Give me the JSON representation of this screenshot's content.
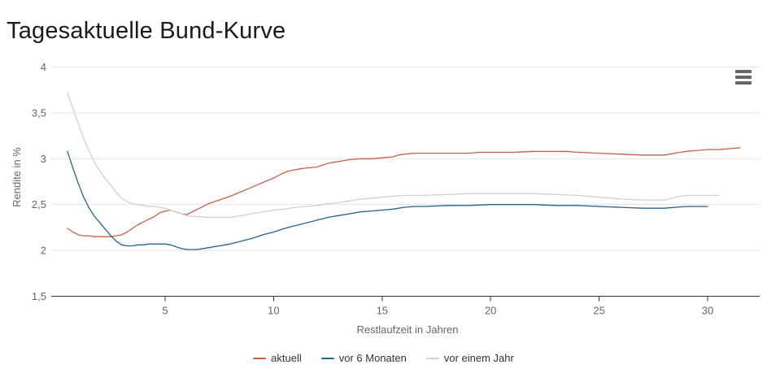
{
  "page": {
    "title": "Tagesaktuelle Bund-Kurve"
  },
  "controls": {
    "context_menu_icon": "hamburger-icon"
  },
  "colors": {
    "background": "#ffffff",
    "gridline": "#e6e6e6",
    "axis_line": "#333333",
    "tick_text": "#666666",
    "legend_text": "#333333",
    "title_text": "#1a1a1a",
    "series_aktuell": "#c9604c",
    "series_vor6": "#23658a",
    "series_vorjahr": "#d0d0d0"
  },
  "chart_data": {
    "type": "line",
    "title": "Tagesaktuelle Bund-Kurve",
    "xlabel": "Restlaufzeit in Jahren",
    "ylabel": "Rendite in %",
    "xlim": [
      0,
      32.4
    ],
    "ylim": [
      1.5,
      4
    ],
    "xticks": [
      5,
      10,
      15,
      20,
      25,
      30
    ],
    "yticks": [
      1.5,
      2,
      2.5,
      3,
      3.5,
      4
    ],
    "ytick_labels": [
      "1,5",
      "2",
      "2,5",
      "3",
      "3,5",
      "4"
    ],
    "grid": "horizontal-only",
    "legend_position": "bottom-center",
    "series": [
      {
        "name": "aktuell",
        "color": "#c9604c",
        "points": [
          [
            0.5,
            2.24
          ],
          [
            0.75,
            2.2
          ],
          [
            1,
            2.17
          ],
          [
            1.25,
            2.16
          ],
          [
            1.5,
            2.16
          ],
          [
            1.75,
            2.15
          ],
          [
            2,
            2.15
          ],
          [
            2.25,
            2.15
          ],
          [
            2.5,
            2.15
          ],
          [
            2.75,
            2.16
          ],
          [
            3,
            2.17
          ],
          [
            3.25,
            2.2
          ],
          [
            3.5,
            2.24
          ],
          [
            3.75,
            2.28
          ],
          [
            4,
            2.31
          ],
          [
            4.25,
            2.34
          ],
          [
            4.5,
            2.37
          ],
          [
            4.75,
            2.41
          ],
          [
            5,
            2.43
          ],
          [
            5.25,
            2.44
          ],
          [
            5.5,
            2.42
          ],
          [
            5.75,
            2.4
          ],
          [
            6,
            2.39
          ],
          [
            6.25,
            2.42
          ],
          [
            6.5,
            2.45
          ],
          [
            6.75,
            2.48
          ],
          [
            7,
            2.51
          ],
          [
            7.25,
            2.53
          ],
          [
            7.5,
            2.55
          ],
          [
            7.75,
            2.57
          ],
          [
            8,
            2.59
          ],
          [
            8.5,
            2.64
          ],
          [
            9,
            2.69
          ],
          [
            9.5,
            2.74
          ],
          [
            10,
            2.79
          ],
          [
            10.25,
            2.82
          ],
          [
            10.5,
            2.85
          ],
          [
            10.75,
            2.87
          ],
          [
            11,
            2.88
          ],
          [
            11.25,
            2.89
          ],
          [
            11.5,
            2.9
          ],
          [
            12,
            2.91
          ],
          [
            12.25,
            2.93
          ],
          [
            12.5,
            2.95
          ],
          [
            12.75,
            2.96
          ],
          [
            13,
            2.97
          ],
          [
            13.25,
            2.98
          ],
          [
            13.5,
            2.99
          ],
          [
            14,
            3.0
          ],
          [
            14.5,
            3.0
          ],
          [
            15,
            3.01
          ],
          [
            15.5,
            3.02
          ],
          [
            15.75,
            3.04
          ],
          [
            16,
            3.05
          ],
          [
            16.5,
            3.06
          ],
          [
            17,
            3.06
          ],
          [
            18,
            3.06
          ],
          [
            19,
            3.06
          ],
          [
            19.5,
            3.07
          ],
          [
            20,
            3.07
          ],
          [
            21,
            3.07
          ],
          [
            22,
            3.08
          ],
          [
            23,
            3.08
          ],
          [
            23.5,
            3.08
          ],
          [
            24,
            3.07
          ],
          [
            25,
            3.06
          ],
          [
            26,
            3.05
          ],
          [
            27,
            3.04
          ],
          [
            27.5,
            3.04
          ],
          [
            28,
            3.04
          ],
          [
            28.25,
            3.05
          ],
          [
            28.5,
            3.06
          ],
          [
            28.75,
            3.07
          ],
          [
            29,
            3.08
          ],
          [
            29.5,
            3.09
          ],
          [
            30,
            3.1
          ],
          [
            30.5,
            3.1
          ],
          [
            31,
            3.11
          ],
          [
            31.5,
            3.12
          ]
        ]
      },
      {
        "name": "vor 6 Monaten",
        "color": "#23658a",
        "points": [
          [
            0.5,
            3.08
          ],
          [
            0.75,
            2.9
          ],
          [
            1,
            2.73
          ],
          [
            1.25,
            2.58
          ],
          [
            1.5,
            2.46
          ],
          [
            1.75,
            2.37
          ],
          [
            2,
            2.3
          ],
          [
            2.25,
            2.23
          ],
          [
            2.5,
            2.16
          ],
          [
            2.75,
            2.1
          ],
          [
            3,
            2.06
          ],
          [
            3.25,
            2.05
          ],
          [
            3.5,
            2.05
          ],
          [
            3.75,
            2.06
          ],
          [
            4,
            2.06
          ],
          [
            4.25,
            2.07
          ],
          [
            4.5,
            2.07
          ],
          [
            4.75,
            2.07
          ],
          [
            5,
            2.07
          ],
          [
            5.25,
            2.06
          ],
          [
            5.5,
            2.04
          ],
          [
            5.75,
            2.02
          ],
          [
            6,
            2.01
          ],
          [
            6.25,
            2.01
          ],
          [
            6.5,
            2.01
          ],
          [
            6.75,
            2.02
          ],
          [
            7,
            2.03
          ],
          [
            7.5,
            2.05
          ],
          [
            8,
            2.07
          ],
          [
            8.5,
            2.1
          ],
          [
            9,
            2.13
          ],
          [
            9.5,
            2.17
          ],
          [
            10,
            2.2
          ],
          [
            10.5,
            2.24
          ],
          [
            11,
            2.27
          ],
          [
            11.5,
            2.3
          ],
          [
            12,
            2.33
          ],
          [
            12.5,
            2.36
          ],
          [
            13,
            2.38
          ],
          [
            13.5,
            2.4
          ],
          [
            14,
            2.42
          ],
          [
            14.5,
            2.43
          ],
          [
            15,
            2.44
          ],
          [
            15.5,
            2.45
          ],
          [
            16,
            2.47
          ],
          [
            16.5,
            2.48
          ],
          [
            17,
            2.48
          ],
          [
            18,
            2.49
          ],
          [
            19,
            2.49
          ],
          [
            20,
            2.5
          ],
          [
            21,
            2.5
          ],
          [
            22,
            2.5
          ],
          [
            23,
            2.49
          ],
          [
            24,
            2.49
          ],
          [
            25,
            2.48
          ],
          [
            26,
            2.47
          ],
          [
            27,
            2.46
          ],
          [
            27.5,
            2.46
          ],
          [
            28,
            2.46
          ],
          [
            28.5,
            2.47
          ],
          [
            29,
            2.48
          ],
          [
            29.5,
            2.48
          ],
          [
            30,
            2.48
          ]
        ]
      },
      {
        "name": "vor einem Jahr",
        "color": "#d0d0d0",
        "points": [
          [
            0.5,
            3.72
          ],
          [
            0.75,
            3.55
          ],
          [
            1,
            3.38
          ],
          [
            1.25,
            3.22
          ],
          [
            1.5,
            3.08
          ],
          [
            1.75,
            2.96
          ],
          [
            2,
            2.86
          ],
          [
            2.25,
            2.78
          ],
          [
            2.5,
            2.71
          ],
          [
            2.75,
            2.63
          ],
          [
            3,
            2.57
          ],
          [
            3.25,
            2.53
          ],
          [
            3.5,
            2.51
          ],
          [
            3.75,
            2.5
          ],
          [
            4,
            2.49
          ],
          [
            4.25,
            2.48
          ],
          [
            4.5,
            2.48
          ],
          [
            4.75,
            2.47
          ],
          [
            5,
            2.46
          ],
          [
            5.25,
            2.44
          ],
          [
            5.5,
            2.42
          ],
          [
            5.75,
            2.4
          ],
          [
            6,
            2.38
          ],
          [
            6.25,
            2.37
          ],
          [
            6.5,
            2.37
          ],
          [
            7,
            2.36
          ],
          [
            7.5,
            2.36
          ],
          [
            8,
            2.36
          ],
          [
            8.5,
            2.38
          ],
          [
            9,
            2.4
          ],
          [
            9.5,
            2.42
          ],
          [
            10,
            2.44
          ],
          [
            10.5,
            2.45
          ],
          [
            11,
            2.47
          ],
          [
            11.5,
            2.48
          ],
          [
            12,
            2.49
          ],
          [
            12.5,
            2.51
          ],
          [
            13,
            2.52
          ],
          [
            13.5,
            2.54
          ],
          [
            14,
            2.56
          ],
          [
            14.5,
            2.57
          ],
          [
            15,
            2.58
          ],
          [
            15.5,
            2.59
          ],
          [
            16,
            2.6
          ],
          [
            17,
            2.6
          ],
          [
            18,
            2.61
          ],
          [
            19,
            2.62
          ],
          [
            20,
            2.62
          ],
          [
            21,
            2.62
          ],
          [
            22,
            2.62
          ],
          [
            23,
            2.61
          ],
          [
            24,
            2.6
          ],
          [
            25,
            2.58
          ],
          [
            26,
            2.56
          ],
          [
            27,
            2.55
          ],
          [
            27.5,
            2.55
          ],
          [
            28,
            2.55
          ],
          [
            28.25,
            2.56
          ],
          [
            28.5,
            2.58
          ],
          [
            29,
            2.6
          ],
          [
            29.5,
            2.6
          ],
          [
            30,
            2.6
          ],
          [
            30.5,
            2.6
          ]
        ]
      }
    ]
  }
}
